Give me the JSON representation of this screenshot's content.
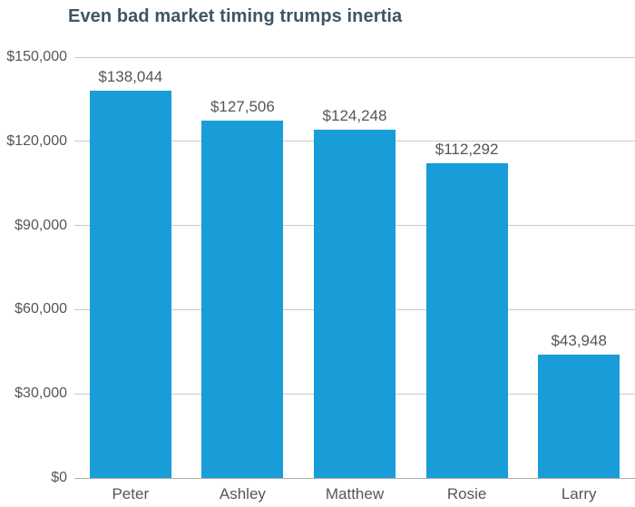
{
  "chart_data": {
    "type": "bar",
    "title": "Even bad market timing trumps inertia",
    "categories": [
      "Peter",
      "Ashley",
      "Matthew",
      "Rosie",
      "Larry"
    ],
    "values": [
      138044,
      127506,
      124248,
      112292,
      43948
    ],
    "value_labels": [
      "$138,044",
      "$127,506",
      "$124,248",
      "$112,292",
      "$43,948"
    ],
    "xlabel": "",
    "ylabel": "",
    "ylim": [
      0,
      150000
    ],
    "y_ticks": [
      0,
      30000,
      60000,
      90000,
      120000,
      150000
    ],
    "y_tick_labels": [
      "$0",
      "$30,000",
      "$60,000",
      "$90,000",
      "$120,000",
      "$150,000"
    ],
    "grid": "horizontal",
    "legend": "none",
    "colors": {
      "bar": "#189dd8",
      "title": "#3d5665",
      "label": "#55565a",
      "gridline": "#c9cbcd",
      "axis_line": "#a9abad"
    }
  }
}
